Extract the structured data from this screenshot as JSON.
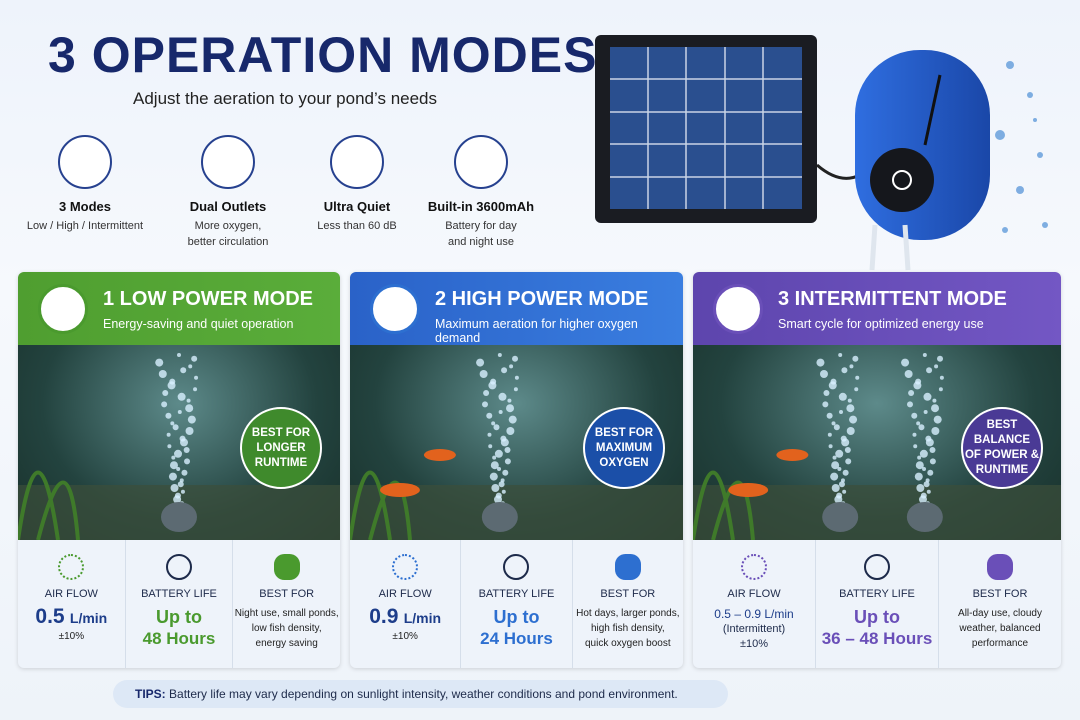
{
  "header": {
    "title": "3 OPERATION MODES",
    "subtitle": "Adjust the aeration to your pond’s needs"
  },
  "features": [
    {
      "title": "3 Modes",
      "desc": [
        "Low / High / Intermittent"
      ]
    },
    {
      "title": "Dual Outlets",
      "desc": [
        "More oxygen,",
        "better circulation"
      ]
    },
    {
      "title": "Ultra Quiet",
      "desc": [
        "Less than 60 dB"
      ]
    },
    {
      "title": "Built-in 3600mAh",
      "desc": [
        "Battery for day",
        "and night use"
      ]
    }
  ],
  "modes": [
    {
      "title": "1 LOW POWER MODE",
      "subtitle": "Energy-saving and quiet operation",
      "badge": [
        "BEST FOR",
        "LONGER",
        "RUNTIME"
      ],
      "air_flow": {
        "label": "AIR FLOW",
        "value": "0.5",
        "unit": "L/min",
        "notes": [
          "±10%"
        ]
      },
      "battery": {
        "label": "BATTERY LIFE",
        "lines": [
          "Up to",
          "48 Hours"
        ]
      },
      "best_for": {
        "label": "BEST FOR",
        "lines": [
          "Night use, small ponds,",
          "low fish density,",
          "energy saving"
        ]
      }
    },
    {
      "title": "2 HIGH POWER MODE",
      "subtitle": "Maximum aeration for higher oxygen demand",
      "badge": [
        "BEST FOR",
        "MAXIMUM",
        "OXYGEN"
      ],
      "air_flow": {
        "label": "AIR FLOW",
        "value": "0.9",
        "unit": "L/min",
        "notes": [
          "±10%"
        ]
      },
      "battery": {
        "label": "BATTERY LIFE",
        "lines": [
          "Up to",
          "24 Hours"
        ]
      },
      "best_for": {
        "label": "BEST FOR",
        "lines": [
          "Hot days, larger ponds,",
          "high fish density,",
          "quick oxygen boost"
        ]
      }
    },
    {
      "title": "3 INTERMITTENT MODE",
      "subtitle": "Smart cycle for optimized energy use",
      "badge": [
        "BEST",
        "BALANCE",
        "OF POWER &",
        "RUNTIME"
      ],
      "air_flow": {
        "label": "AIR FLOW",
        "value": "0.5 – 0.9",
        "unit": "L/min",
        "notes": [
          "(Intermittent)",
          "±10%"
        ]
      },
      "battery": {
        "label": "BATTERY LIFE",
        "lines": [
          "Up to",
          "36 – 48 Hours"
        ]
      },
      "best_for": {
        "label": "BEST FOR",
        "lines": [
          "All-day use, cloudy",
          "weather, balanced",
          "performance"
        ]
      }
    }
  ],
  "tips": {
    "label": "TIPS:",
    "text": "Battery life may vary depending on sunlight intensity, weather conditions and pond environment."
  }
}
